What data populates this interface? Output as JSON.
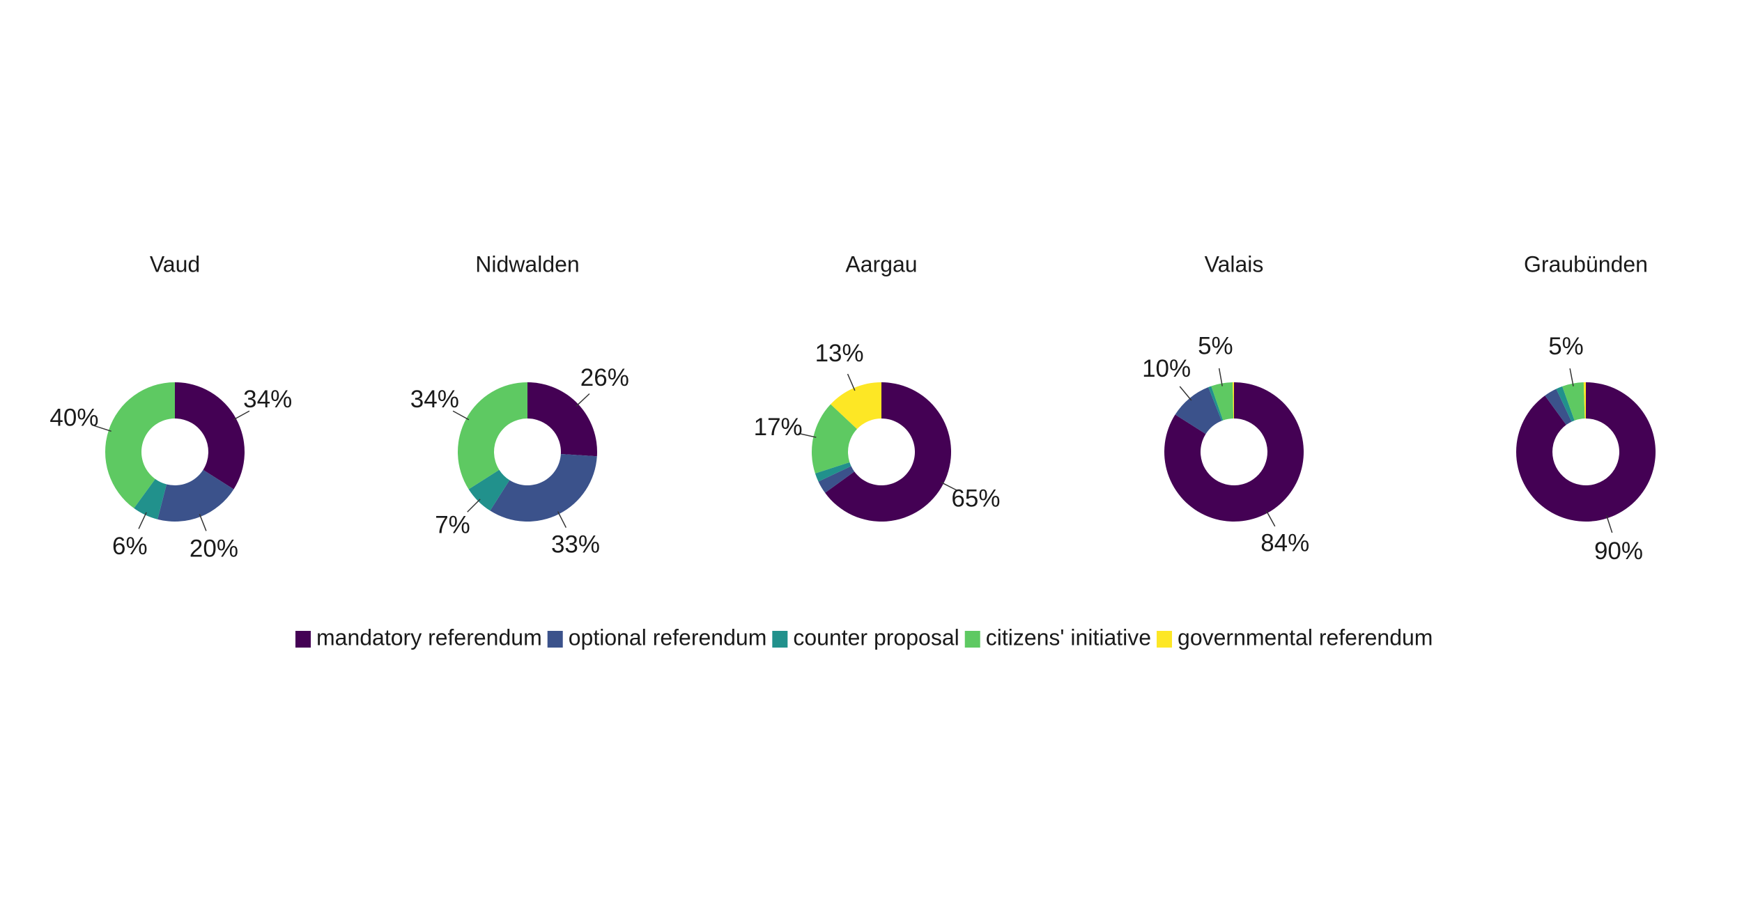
{
  "chart_data": {
    "type": "donut",
    "series": [
      {
        "name": "mandatory referendum",
        "color": "#440154"
      },
      {
        "name": "optional referendum",
        "color": "#3b528b"
      },
      {
        "name": "counter proposal",
        "color": "#21918c"
      },
      {
        "name": "citizens' initiative",
        "color": "#5ec962"
      },
      {
        "name": "governmental referendum",
        "color": "#fde725"
      }
    ],
    "charts": [
      {
        "title": "Vaud",
        "values": [
          34,
          20,
          6,
          40,
          0
        ],
        "value_labels": [
          "34%",
          "20%",
          "6%",
          "40%",
          null
        ]
      },
      {
        "title": "Nidwalden",
        "values": [
          26,
          33,
          7,
          34,
          0
        ],
        "value_labels": [
          "26%",
          "33%",
          "7%",
          "34%",
          null
        ]
      },
      {
        "title": "Aargau",
        "values": [
          65,
          3,
          2,
          17,
          13
        ],
        "value_labels": [
          "65%",
          null,
          null,
          "17%",
          "13%"
        ]
      },
      {
        "title": "Valais",
        "values": [
          84,
          10,
          0.7,
          5,
          0.3
        ],
        "value_labels": [
          "84%",
          "10%",
          null,
          "5%",
          null
        ]
      },
      {
        "title": "Graubünden",
        "values": [
          90,
          3,
          1.5,
          5,
          0.5
        ],
        "value_labels": [
          "90%",
          null,
          null,
          "5%",
          null
        ]
      }
    ]
  }
}
